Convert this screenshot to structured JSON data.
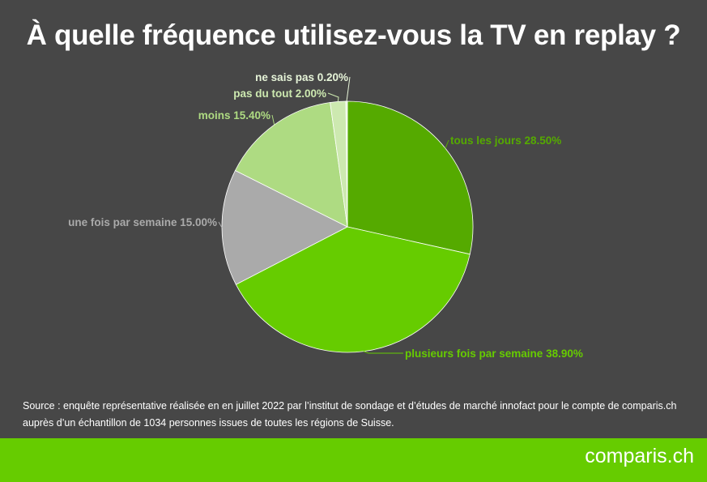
{
  "title": "À quelle fréquence utilisez-vous la TV en replay ?",
  "chart_data": {
    "type": "pie",
    "title": "À quelle fréquence utilisez-vous la TV en replay ?",
    "slices": [
      {
        "label": "tous les jours",
        "value": 28.5,
        "display": "28.50%",
        "color": "#55aa00"
      },
      {
        "label": "plusieurs fois par semaine",
        "value": 38.9,
        "display": "38.90%",
        "color": "#66cc00"
      },
      {
        "label": "une fois par semaine",
        "value": 15.0,
        "display": "15.00%",
        "color": "#aaaaaa"
      },
      {
        "label": "moins",
        "value": 15.4,
        "display": "15.40%",
        "color": "#aedb82"
      },
      {
        "label": "pas du tout",
        "value": 2.0,
        "display": "2.00%",
        "color": "#cde9b0"
      },
      {
        "label": "ne sais pas",
        "value": 0.2,
        "display": "0.20%",
        "color": "#e6f4d8"
      }
    ]
  },
  "source": {
    "line1": "Source : enquête représentative réalisée en en juillet 2022 par l’institut de sondage et d’études de marché innofact pour le compte de comparis.ch",
    "line2": "auprès d’un échantillon de 1034 personnes issues de toutes les régions de Suisse."
  },
  "brand": "comparis.ch",
  "colors": {
    "background": "#474747",
    "footer": "#66cc00",
    "slice_stroke": "#ffffff"
  }
}
